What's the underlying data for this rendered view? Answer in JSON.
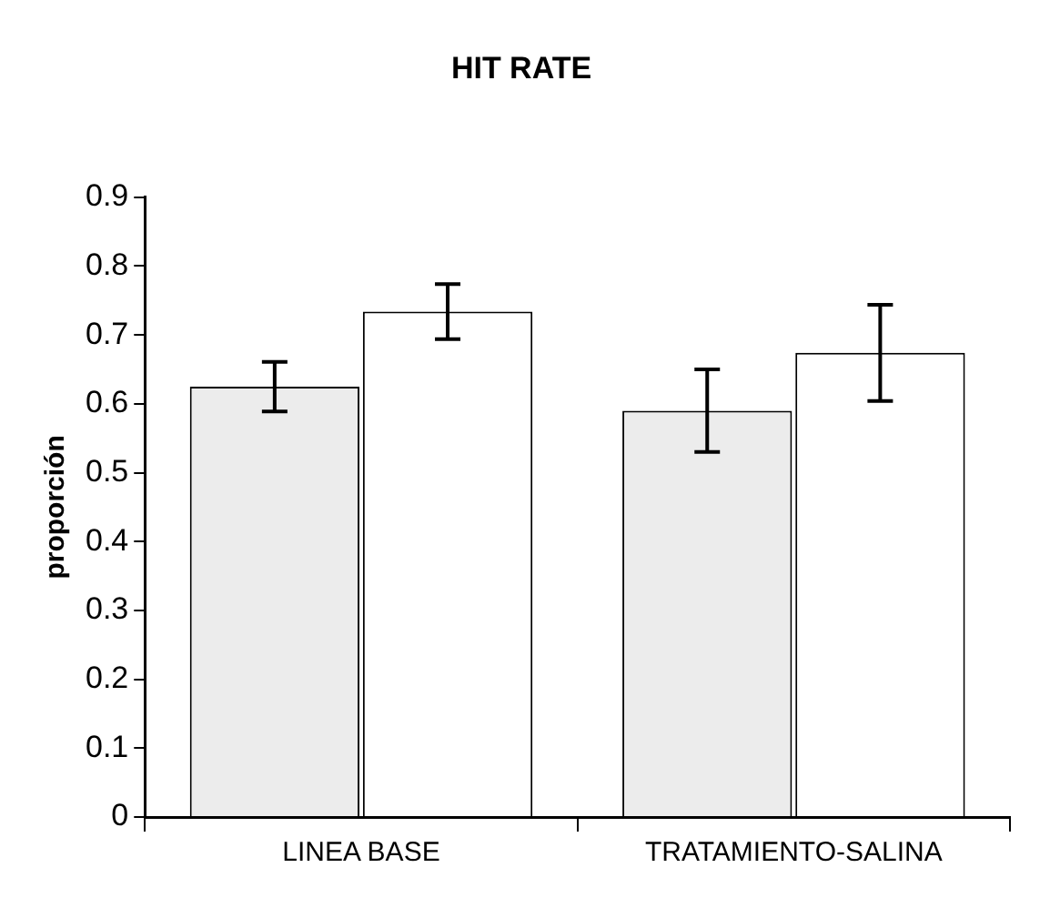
{
  "chart_data": {
    "type": "bar",
    "title": "HIT RATE",
    "ylabel": "proporción",
    "categories": [
      "LINEA BASE",
      "TRATAMIENTO-SALINA"
    ],
    "series": [
      {
        "color": "#ececec",
        "values": [
          0.625,
          0.59
        ],
        "errors": [
          0.036,
          0.06
        ]
      },
      {
        "color": "#ffffff",
        "values": [
          0.734,
          0.674
        ],
        "errors": [
          0.04,
          0.07
        ]
      }
    ],
    "ylim": [
      0,
      0.9
    ],
    "yticks": [
      0,
      0.1,
      0.2,
      0.3,
      0.4,
      0.5,
      0.6,
      0.7,
      0.8,
      0.9
    ],
    "grid": false,
    "legend": false
  }
}
